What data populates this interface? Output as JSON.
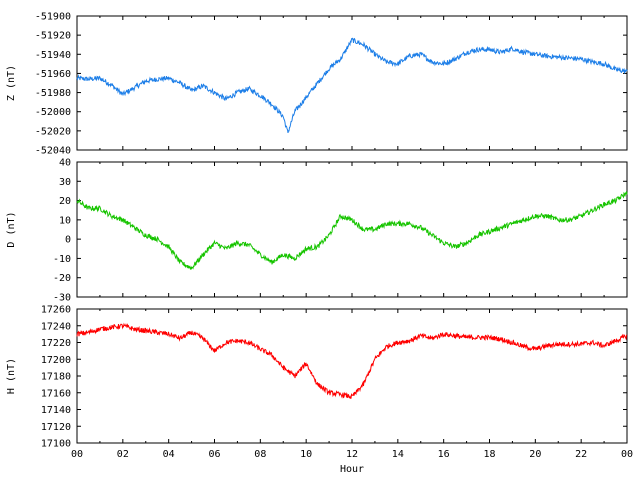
{
  "chart_data": {
    "type": "line",
    "xlabel": "Hour",
    "x_ticks": [
      "00",
      "02",
      "04",
      "06",
      "08",
      "10",
      "12",
      "14",
      "16",
      "18",
      "20",
      "22",
      "00"
    ],
    "xlim": [
      0,
      24
    ],
    "panels": [
      {
        "name": "Z",
        "ylabel": "Z (nT)",
        "color": "#1e7fe8",
        "ylim": [
          -52040,
          -51900
        ],
        "y_ticks": [
          "-51900",
          "-51920",
          "-51940",
          "-51960",
          "-51980",
          "-52000",
          "-52020",
          "-52040"
        ],
        "y_tick_values": [
          -51900,
          -51920,
          -51940,
          -51960,
          -51980,
          -52000,
          -52020,
          -52040
        ],
        "series": {
          "x": [
            0,
            0.5,
            1,
            1.5,
            2,
            2.5,
            3,
            3.5,
            4,
            4.5,
            5,
            5.5,
            6,
            6.5,
            7,
            7.5,
            8,
            8.5,
            9,
            9.2,
            9.5,
            10,
            10.5,
            11,
            11.5,
            12,
            12.5,
            13,
            13.5,
            14,
            14.5,
            15,
            15.5,
            16,
            16.5,
            17,
            17.5,
            18,
            18.5,
            19,
            19.5,
            20,
            20.5,
            21,
            21.5,
            22,
            22.5,
            23,
            23.5,
            24
          ],
          "y": [
            -51965,
            -51966,
            -51965,
            -51972,
            -51982,
            -51975,
            -51968,
            -51966,
            -51965,
            -51970,
            -51978,
            -51973,
            -51980,
            -51987,
            -51980,
            -51976,
            -51983,
            -51992,
            -52005,
            -52022,
            -52000,
            -51985,
            -51970,
            -51955,
            -51945,
            -51925,
            -51930,
            -51940,
            -51948,
            -51950,
            -51942,
            -51940,
            -51948,
            -51950,
            -51945,
            -51938,
            -51935,
            -51935,
            -51938,
            -51934,
            -51938,
            -51940,
            -51942,
            -51943,
            -51944,
            -51945,
            -51948,
            -51950,
            -51956,
            -51958
          ],
          "noise": 3
        }
      },
      {
        "name": "D",
        "ylabel": "D (nT)",
        "color": "#17c400",
        "ylim": [
          -30,
          40
        ],
        "y_ticks": [
          "40",
          "30",
          "20",
          "10",
          "0",
          "-10",
          "-20",
          "-30"
        ],
        "y_tick_values": [
          40,
          30,
          20,
          10,
          0,
          -10,
          -20,
          -30
        ],
        "series": {
          "x": [
            0,
            0.5,
            1,
            1.5,
            2,
            2.5,
            3,
            3.5,
            4,
            4.5,
            5,
            5.5,
            6,
            6.5,
            7,
            7.5,
            8,
            8.5,
            9,
            9.5,
            10,
            10.5,
            11,
            11.5,
            12,
            12.5,
            13,
            13.5,
            14,
            14.5,
            15,
            15.5,
            16,
            16.5,
            17,
            17.5,
            18,
            18.5,
            19,
            19.5,
            20,
            20.5,
            21,
            21.5,
            22,
            22.5,
            23,
            23.5,
            24
          ],
          "y": [
            20,
            16,
            16,
            12,
            10,
            6,
            2,
            0,
            -4,
            -12,
            -15,
            -8,
            -2,
            -5,
            -2,
            -3,
            -8,
            -12,
            -8,
            -10,
            -5,
            -4,
            2,
            12,
            10,
            5,
            5,
            8,
            8,
            8,
            6,
            2,
            -2,
            -4,
            -2,
            2,
            4,
            6,
            8,
            10,
            12,
            12,
            10,
            10,
            12,
            15,
            18,
            20,
            24
          ],
          "noise": 3
        }
      },
      {
        "name": "H",
        "ylabel": "H (nT)",
        "color": "#ff0000",
        "ylim": [
          17100,
          17260
        ],
        "y_ticks": [
          "17260",
          "17240",
          "17220",
          "17200",
          "17180",
          "17160",
          "17140",
          "17120",
          "17100"
        ],
        "y_tick_values": [
          17260,
          17240,
          17220,
          17200,
          17180,
          17160,
          17140,
          17120,
          17100
        ],
        "series": {
          "x": [
            0,
            0.5,
            1,
            1.5,
            2,
            2.5,
            3,
            3.5,
            4,
            4.5,
            5,
            5.5,
            6,
            6.5,
            7,
            7.5,
            8,
            8.5,
            9,
            9.5,
            10,
            10.5,
            11,
            11.5,
            12,
            12.5,
            13,
            13.5,
            14,
            14.5,
            15,
            15.5,
            16,
            16.5,
            17,
            17.5,
            18,
            18.5,
            19,
            19.5,
            20,
            20.5,
            21,
            21.5,
            22,
            22.5,
            23,
            23.5,
            24
          ],
          "y": [
            17230,
            17232,
            17236,
            17238,
            17240,
            17236,
            17234,
            17232,
            17230,
            17225,
            17232,
            17225,
            17210,
            17220,
            17222,
            17220,
            17212,
            17205,
            17190,
            17180,
            17195,
            17170,
            17160,
            17158,
            17155,
            17170,
            17200,
            17215,
            17220,
            17222,
            17228,
            17225,
            17230,
            17228,
            17226,
            17226,
            17226,
            17224,
            17220,
            17215,
            17212,
            17216,
            17218,
            17218,
            17218,
            17220,
            17216,
            17222,
            17228
          ],
          "noise": 3
        }
      }
    ]
  }
}
